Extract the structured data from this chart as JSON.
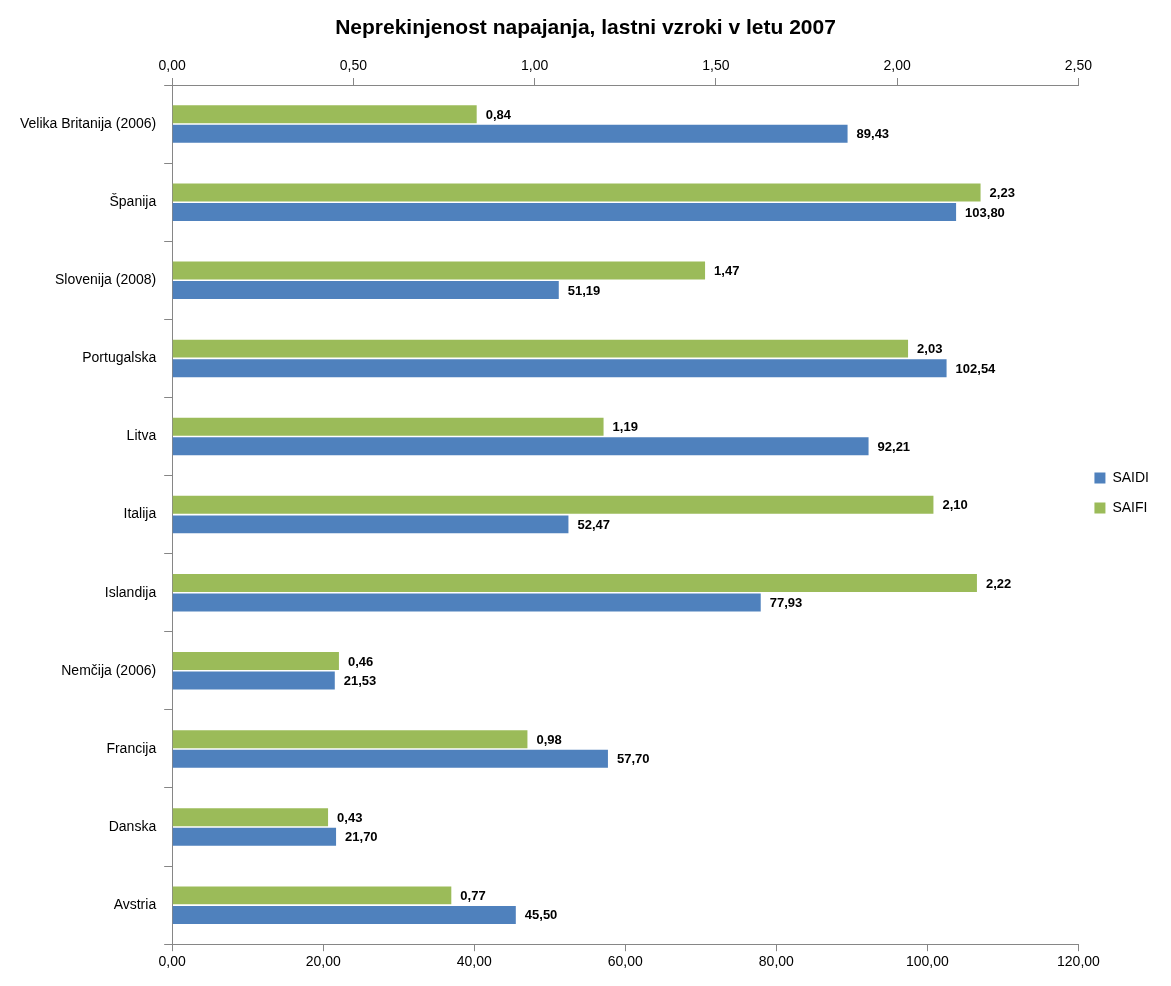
{
  "chart_data": {
    "type": "bar",
    "orientation": "horizontal",
    "title": "Neprekinjenost napajanja, lastni vzroki v letu 2007",
    "categories": [
      "Velika Britanija (2006)",
      "Španija",
      "Slovenija (2008)",
      "Portugalska",
      "Litva",
      "Italija",
      "Islandija",
      "Nemčija (2006)",
      "Francija",
      "Danska",
      "Avstria"
    ],
    "series": [
      {
        "name": "SAIDI",
        "color": "#4f81bd",
        "values": [
          89.43,
          103.8,
          51.19,
          102.54,
          92.21,
          52.47,
          77.93,
          21.53,
          57.7,
          21.7,
          45.5
        ],
        "value_labels": [
          "89,43",
          "103,80",
          "51,19",
          "102,54",
          "92,21",
          "52,47",
          "77,93",
          "21,53",
          "57,70",
          "21,70",
          "45,50"
        ]
      },
      {
        "name": "SAIFI",
        "color": "#9bbb59",
        "axis": "x2",
        "values": [
          0.84,
          2.23,
          1.47,
          2.03,
          1.19,
          2.1,
          2.22,
          0.46,
          0.98,
          0.43,
          0.77
        ],
        "value_labels": [
          "0,84",
          "2,23",
          "1,47",
          "2,03",
          "1,19",
          "2,10",
          "2,22",
          "0,46",
          "0,98",
          "0,43",
          "0,77"
        ]
      }
    ],
    "xlim": [
      0,
      120
    ],
    "xticks": [
      {
        "value": 0,
        "label": "0,00"
      },
      {
        "value": 20,
        "label": "20,00"
      },
      {
        "value": 40,
        "label": "40,00"
      },
      {
        "value": 60,
        "label": "60,00"
      },
      {
        "value": 80,
        "label": "80,00"
      },
      {
        "value": 100,
        "label": "100,00"
      },
      {
        "value": 120,
        "label": "120,00"
      }
    ],
    "x2lim": [
      0,
      2.5
    ],
    "x2ticks": [
      {
        "value": 0,
        "label": "0,00"
      },
      {
        "value": 0.5,
        "label": "0,50"
      },
      {
        "value": 1,
        "label": "1,00"
      },
      {
        "value": 1.5,
        "label": "1,50"
      },
      {
        "value": 2,
        "label": "2,00"
      },
      {
        "value": 2.5,
        "label": "2,50"
      }
    ],
    "grid": false,
    "legend": "right"
  }
}
